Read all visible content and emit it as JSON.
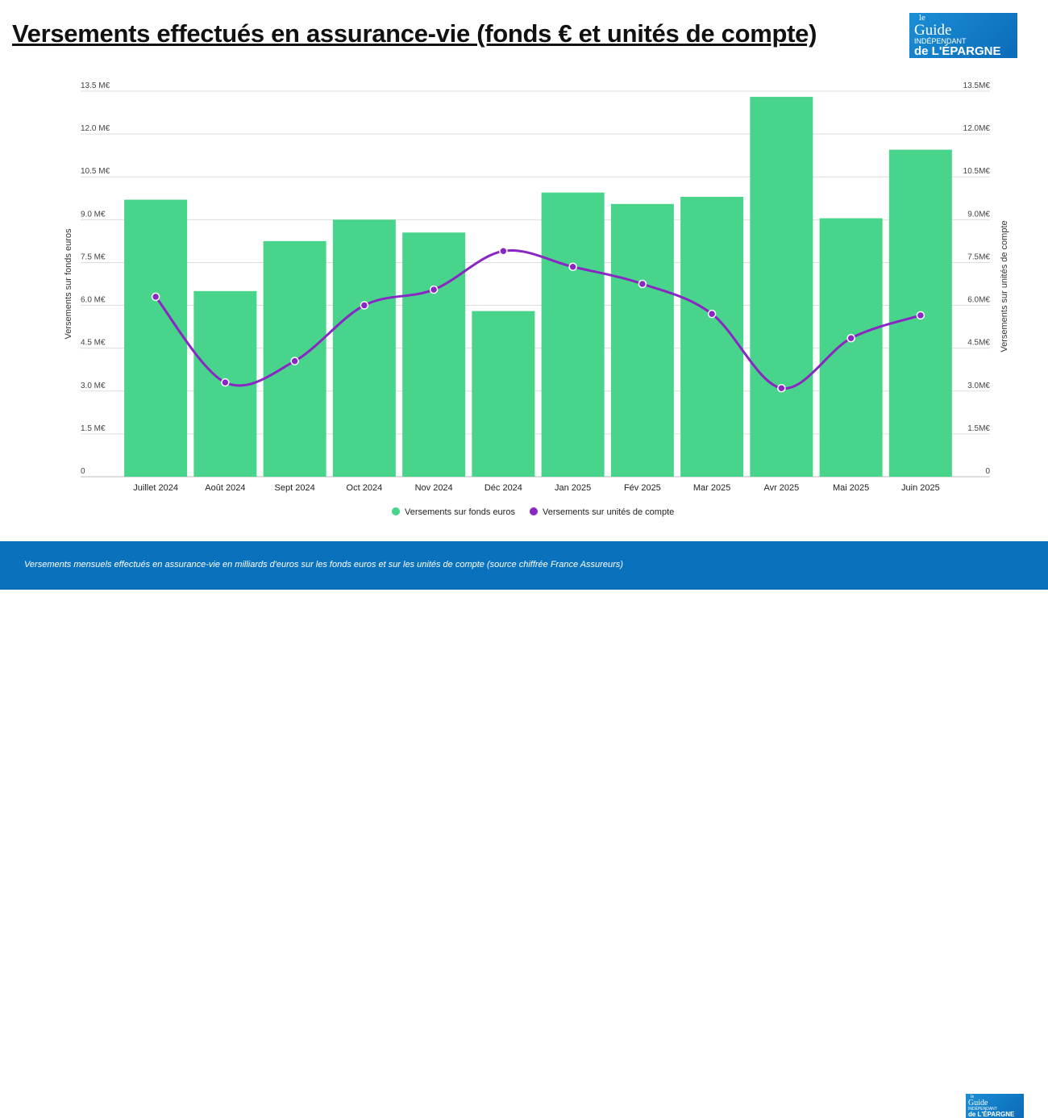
{
  "title": "Versements effectués en assurance-vie (fonds € et unités de compte)",
  "logo": {
    "l1": "le",
    "l2": "Guide",
    "l3": "INDÉPENDANT",
    "l4": "de L'ÉPARGNE"
  },
  "footer": {
    "caption": "Versements mensuels effectués en assurance-vie en milliards d'euros sur les fonds euros et sur les unités de compte (source chiffrée France Assureurs)"
  },
  "chart_data": {
    "type": "bar+line",
    "categories": [
      "Juillet 2024",
      "Août 2024",
      "Sept 2024",
      "Oct 2024",
      "Nov 2024",
      "Déc 2024",
      "Jan 2025",
      "Fév 2025",
      "Mar 2025",
      "Avr 2025",
      "Mai 2025",
      "Juin 2025"
    ],
    "series": [
      {
        "name": "Versements sur fonds euros",
        "type": "bar",
        "axis": "left",
        "color": "#48d48a",
        "values": [
          9.7,
          6.5,
          8.25,
          9.0,
          8.55,
          5.8,
          9.95,
          9.55,
          9.8,
          13.3,
          9.05,
          11.45
        ]
      },
      {
        "name": "Versements sur unités de compte",
        "type": "line",
        "axis": "right",
        "color": "#8a26c4",
        "values": [
          6.3,
          3.3,
          4.05,
          6.0,
          6.55,
          7.9,
          7.35,
          6.75,
          5.7,
          3.1,
          4.85,
          5.65
        ]
      }
    ],
    "ylabel_left": "Versements sur fonds euros",
    "ylabel_right": "Versements sur unités de compte",
    "ylim": [
      0,
      13.5
    ],
    "yticks_left": [
      "0",
      "1.5 M€",
      "3.0 M€",
      "4.5 M€",
      "6.0 M€",
      "7.5 M€",
      "9.0 M€",
      "10.5 M€",
      "12.0 M€",
      "13.5 M€"
    ],
    "yticks_right": [
      "0",
      "1.5M€",
      "3.0M€",
      "4.5M€",
      "6.0M€",
      "7.5M€",
      "9.0M€",
      "10.5M€",
      "12.0M€",
      "13.5M€"
    ],
    "grid": true,
    "legend": "bottom"
  }
}
